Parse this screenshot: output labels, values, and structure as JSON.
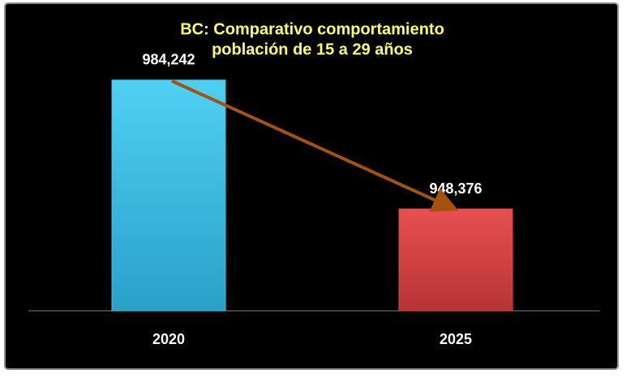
{
  "chart_data": {
    "type": "bar",
    "title": [
      "BC: Comparativo comportamiento",
      "población de 15 a 29 años"
    ],
    "categories": [
      "2020",
      "2025"
    ],
    "values": [
      984242,
      948376
    ],
    "value_labels": [
      "984,242",
      "948,376"
    ],
    "colors": [
      "#3ec3e8",
      "#dc4545"
    ],
    "ylim": [
      920000,
      1000000
    ]
  }
}
